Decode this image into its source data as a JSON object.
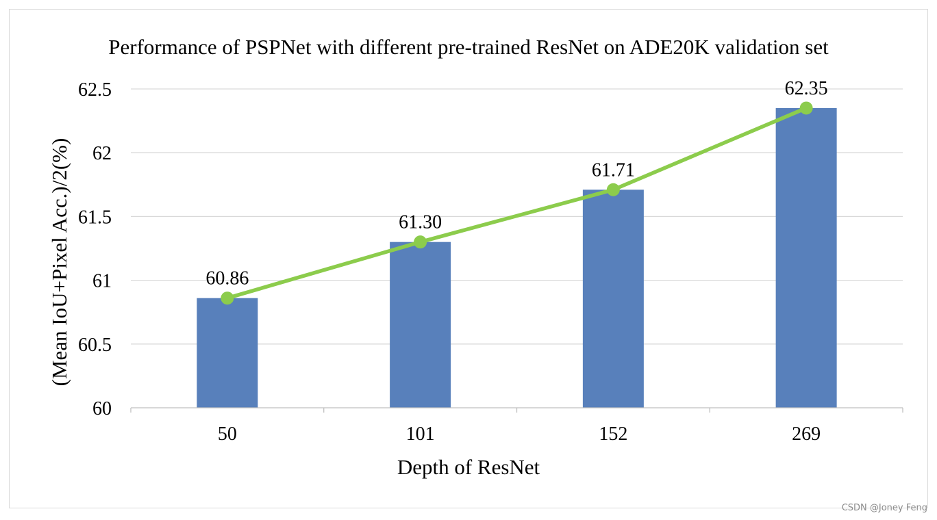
{
  "chart_data": {
    "type": "bar",
    "title": "Performance of PSPNet with different pre-trained ResNet on ADE20K validation set",
    "xlabel": "Depth of ResNet",
    "ylabel": "(Mean IoU+Pixel Acc.)/2(%)",
    "categories": [
      "50",
      "101",
      "152",
      "269"
    ],
    "values": [
      60.86,
      61.3,
      61.71,
      62.35
    ],
    "data_labels": [
      "60.86",
      "61.30",
      "61.71",
      "62.35"
    ],
    "overlay_line": true,
    "ylim": [
      60,
      62.5
    ],
    "yticks": [
      60,
      60.5,
      61,
      61.5,
      62,
      62.5
    ],
    "ytick_labels": [
      "60",
      "60.5",
      "61",
      "61.5",
      "62",
      "62.5"
    ],
    "grid": "horizontal",
    "legend": "none",
    "colors": {
      "bar": "#5880bb",
      "line": "#8ccc4c",
      "grid": "#d9d9d9",
      "axis": "#bfbfbf"
    }
  },
  "watermark": "CSDN @Joney Feng"
}
